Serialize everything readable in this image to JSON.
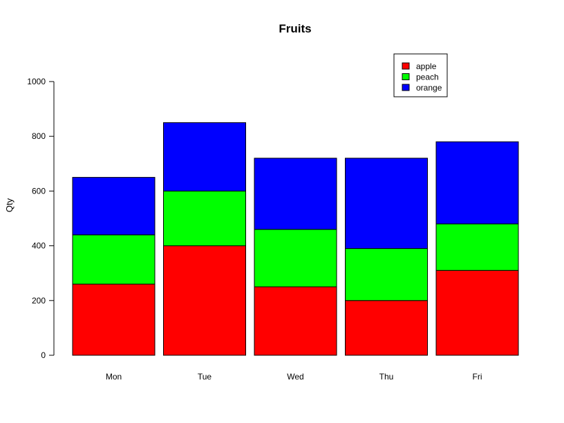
{
  "chart_data": {
    "type": "bar",
    "stacked": true,
    "title": "Fruits",
    "xlabel": "",
    "ylabel": "Qty",
    "ylim": [
      0,
      1000
    ],
    "yticks": [
      0,
      200,
      400,
      600,
      800,
      1000
    ],
    "categories": [
      "Mon",
      "Tue",
      "Wed",
      "Thu",
      "Fri"
    ],
    "series": [
      {
        "name": "apple",
        "color": "#ff0000",
        "values": [
          260,
          400,
          250,
          200,
          310
        ]
      },
      {
        "name": "peach",
        "color": "#00ff00",
        "values": [
          180,
          200,
          210,
          190,
          170
        ]
      },
      {
        "name": "orange",
        "color": "#0000ff",
        "values": [
          210,
          250,
          260,
          330,
          300
        ]
      }
    ],
    "legend": {
      "position": "top-right"
    },
    "grid": false
  }
}
